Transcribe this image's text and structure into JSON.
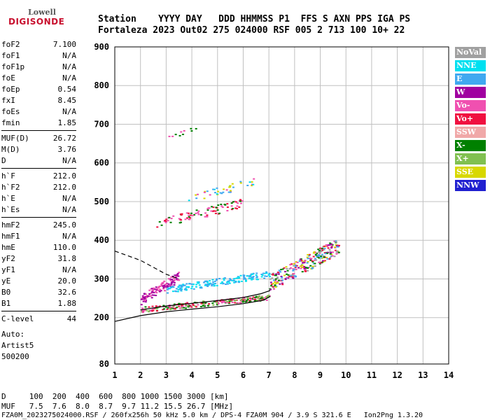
{
  "logo": {
    "top": "Lowell",
    "bottom": "DIGISONDE"
  },
  "header": {
    "row1": "Station    YYYY DAY   DDD HHMMSS P1  FFS S AXN PPS IGA PS",
    "row2": "Fortaleza 2023 Out02 275 024000 RSF 005 2 713 100 10+ 22"
  },
  "params": [
    [
      {
        "name": "foF2",
        "value": "7.100"
      },
      {
        "name": "foF1",
        "value": "N/A"
      },
      {
        "name": "foF1p",
        "value": "N/A"
      },
      {
        "name": "foE",
        "value": "N/A"
      },
      {
        "name": "foEp",
        "value": "0.54"
      },
      {
        "name": "fxI",
        "value": "8.45"
      },
      {
        "name": "foEs",
        "value": "N/A"
      },
      {
        "name": "fmin",
        "value": "1.85"
      }
    ],
    [
      {
        "name": "MUF(D)",
        "value": "26.72"
      },
      {
        "name": "M(D)",
        "value": "3.76"
      },
      {
        "name": "D",
        "value": "N/A"
      }
    ],
    [
      {
        "name": "h`F",
        "value": "212.0"
      },
      {
        "name": "h`F2",
        "value": "212.0"
      },
      {
        "name": "h`E",
        "value": "N/A"
      },
      {
        "name": "h`Es",
        "value": "N/A"
      }
    ],
    [
      {
        "name": "hmF2",
        "value": "245.0"
      },
      {
        "name": "hmF1",
        "value": "N/A"
      },
      {
        "name": "hmE",
        "value": "110.0"
      },
      {
        "name": "yF2",
        "value": "31.8"
      },
      {
        "name": "yF1",
        "value": "N/A"
      },
      {
        "name": "yE",
        "value": "20.0"
      },
      {
        "name": "B0",
        "value": "32.6"
      },
      {
        "name": "B1",
        "value": "1.88"
      }
    ],
    [
      {
        "name": "C-level",
        "value": "44"
      }
    ]
  ],
  "auto": {
    "l1": "Auto:",
    "l2": "Artist5",
    "l3": "500200"
  },
  "legend": [
    {
      "label": "NoVal",
      "color": "#a0a0a0"
    },
    {
      "label": "NNE",
      "color": "#00e0f0"
    },
    {
      "label": "E",
      "color": "#40a8f0"
    },
    {
      "label": "W",
      "color": "#a000a0"
    },
    {
      "label": "Vo-",
      "color": "#f050b0"
    },
    {
      "label": "Vo+",
      "color": "#f01040"
    },
    {
      "label": "SSW",
      "color": "#f0a8a8"
    },
    {
      "label": "X-",
      "color": "#008000"
    },
    {
      "label": "X+",
      "color": "#80c050"
    },
    {
      "label": "SSE",
      "color": "#d8d800"
    },
    {
      "label": "NNW",
      "color": "#2020d0"
    }
  ],
  "footer": {
    "line1": "D     100  200  400  600  800 1000 1500 3000 [km]",
    "line2": "MUF   7.5  7.6  8.0  8.7  9.7 11.2 15.5 26.7 [MHz]",
    "line3": "FZA0M_2023275024000.RSF / 260fx256h 50 kHz 5.0 km / DPS-4 FZA0M 904 / 3.9 S 321.6 E   Ion2Png 1.3.20"
  },
  "chart_data": {
    "type": "scatter",
    "xlim": [
      1,
      14
    ],
    "ylim": [
      80,
      900
    ],
    "xticks": [
      1,
      2,
      3,
      4,
      5,
      6,
      7,
      8,
      9,
      10,
      11,
      12,
      13,
      14
    ],
    "yticks": [
      80,
      200,
      300,
      400,
      500,
      600,
      700,
      800,
      900
    ],
    "grid": true,
    "clusters": [
      {
        "name": "F trace",
        "x": [
          2.0,
          7.0
        ],
        "y": [
          215,
          255
        ],
        "colors": [
          "#f01040",
          "#f050b0",
          "#008000",
          "#80c050"
        ],
        "count": 260
      },
      {
        "name": "W echoes",
        "x": [
          2.0,
          3.5
        ],
        "y": [
          235,
          310
        ],
        "colors": [
          "#a000a0",
          "#f050b0"
        ],
        "count": 120
      },
      {
        "name": "E echoes",
        "x": [
          3.0,
          7.0
        ],
        "y": [
          265,
          315
        ],
        "colors": [
          "#40a8f0",
          "#00e0f0"
        ],
        "count": 180
      },
      {
        "name": "Spread F",
        "x": [
          7.0,
          9.7
        ],
        "y": [
          270,
          390
        ],
        "colors": [
          "#f01040",
          "#f050b0",
          "#a000a0",
          "#008000",
          "#d8d800",
          "#a0a0a0",
          "#40a8f0"
        ],
        "count": 260
      },
      {
        "name": "2F trace",
        "x": [
          2.6,
          6.0
        ],
        "y": [
          430,
          500
        ],
        "colors": [
          "#f050b0",
          "#f01040",
          "#008000"
        ],
        "count": 90
      },
      {
        "name": "2F upper",
        "x": [
          3.8,
          6.4
        ],
        "y": [
          495,
          555
        ],
        "colors": [
          "#40a8f0",
          "#00e0f0",
          "#d8d800",
          "#f050b0"
        ],
        "count": 40
      },
      {
        "name": "3F",
        "x": [
          3.0,
          4.3
        ],
        "y": [
          655,
          705
        ],
        "colors": [
          "#f050b0",
          "#008000"
        ],
        "count": 10
      }
    ],
    "curves": [
      {
        "name": "o-trace",
        "style": "solid",
        "points": [
          [
            1.0,
            190
          ],
          [
            2.0,
            205
          ],
          [
            3.0,
            215
          ],
          [
            4.0,
            222
          ],
          [
            5.0,
            228
          ],
          [
            6.0,
            236
          ],
          [
            6.8,
            245
          ],
          [
            7.05,
            255
          ]
        ]
      },
      {
        "name": "o-trace-upper",
        "style": "solid",
        "points": [
          [
            2.0,
            220
          ],
          [
            3.0,
            230
          ],
          [
            4.0,
            237
          ],
          [
            5.0,
            244
          ],
          [
            6.0,
            252
          ],
          [
            6.7,
            262
          ],
          [
            7.05,
            270
          ]
        ]
      },
      {
        "name": "profile",
        "style": "dashed",
        "points": [
          [
            1.0,
            372
          ],
          [
            2.0,
            348
          ],
          [
            3.0,
            312
          ],
          [
            3.5,
            300
          ]
        ]
      }
    ]
  }
}
